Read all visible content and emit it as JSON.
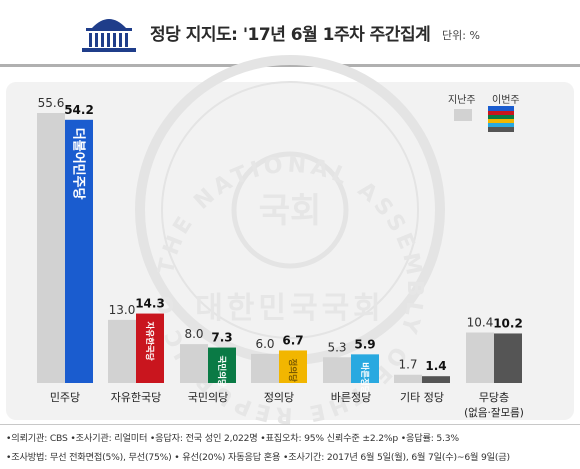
{
  "header": {
    "title": "정당 지지도: '17년 6월 1주차 주간집계",
    "unit": "단위: %"
  },
  "legend": {
    "last_week": "지난주",
    "this_week": "이번주"
  },
  "watermark": {
    "ring_text": "THE NATIONAL ASSEMBLY OF THE REPUBLIC OF KOREA",
    "center_text": "국회",
    "bottom_text": "대한민국국회"
  },
  "chart_data": {
    "type": "bar",
    "categories": [
      "민주당",
      "자유한국당",
      "국민의당",
      "정의당",
      "바른정당",
      "기타 정당",
      "무당층"
    ],
    "category_sub": [
      "",
      "",
      "",
      "",
      "",
      "",
      "(없음·잘모름)"
    ],
    "series": [
      {
        "name": "지난주",
        "values": [
          55.6,
          13.0,
          8.0,
          6.0,
          5.3,
          1.7,
          10.4
        ]
      },
      {
        "name": "이번주",
        "values": [
          54.2,
          14.3,
          7.3,
          6.7,
          5.9,
          1.4,
          10.2
        ]
      }
    ],
    "value_labels_last": [
      "55.6",
      "13.0",
      "8.0",
      "6.0",
      "5.3",
      "1.7",
      "10.4"
    ],
    "value_labels_this": [
      "54.2",
      "14.3",
      "7.3",
      "6.7",
      "5.9",
      "1.4",
      "10.2"
    ],
    "party_colors": [
      "#1a5ccf",
      "#c9151e",
      "#0a7a45",
      "#f2b600",
      "#29a9e0",
      "#555555",
      "#555555"
    ],
    "last_week_color": "#d2d2d2",
    "bar_logos": [
      "더불어민주당",
      "자유한국당",
      "국민의당",
      "정의당",
      "바른정당",
      "",
      ""
    ],
    "ylim": [
      0,
      60
    ],
    "grid": false,
    "legend_position": "top-right"
  },
  "footer": {
    "line1": "•의뢰기관: CBS •조사기관: 리얼미터 •응답자: 전국 성인 2,022명 •표집오차: 95% 신뢰수준 ±2.2%p •응답률: 5.3%",
    "line2": "•조사방법: 무선 전화면접(5%), 무선(75%) • 유선(20%) 자동응답 혼용   •조사기간: 2017년 6월 5일(월), 6월 7일(수)~6월 9일(금)"
  }
}
